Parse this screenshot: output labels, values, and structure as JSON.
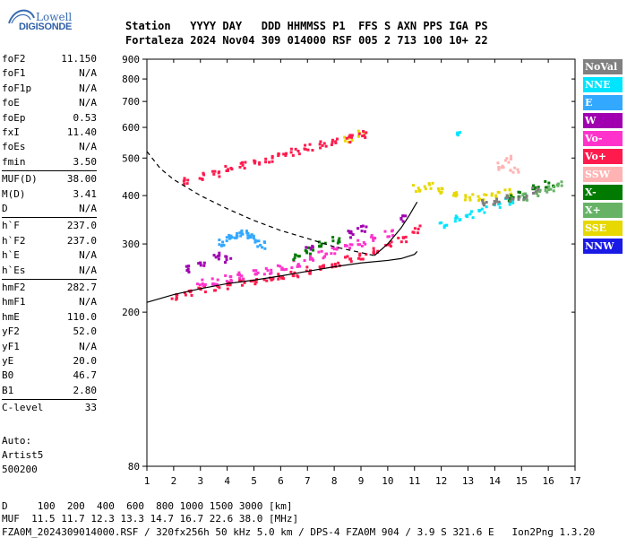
{
  "logo": {
    "line1": "Lowell",
    "line2": "DIGISONDE"
  },
  "header": {
    "labels": "Station   YYYY DAY   DDD HHMMSS P1  FFS S AXN PPS IGA PS",
    "values": "Fortaleza 2024 Nov04 309 014000 RSF 005 2 713 100 10+ 22"
  },
  "params": [
    {
      "name": "foF2",
      "value": "11.150"
    },
    {
      "name": "foF1",
      "value": "N/A"
    },
    {
      "name": "foF1p",
      "value": "N/A"
    },
    {
      "name": "foE",
      "value": "N/A"
    },
    {
      "name": "foEp",
      "value": "0.53"
    },
    {
      "name": "fxI",
      "value": "11.40"
    },
    {
      "name": "foEs",
      "value": "N/A"
    },
    {
      "name": "fmin",
      "value": "3.50"
    },
    {
      "name": "MUF(D)",
      "value": "38.00"
    },
    {
      "name": "M(D)",
      "value": "3.41"
    },
    {
      "name": "D",
      "value": "N/A"
    },
    {
      "name": "h`F",
      "value": "237.0"
    },
    {
      "name": "h`F2",
      "value": "237.0"
    },
    {
      "name": "h`E",
      "value": "N/A"
    },
    {
      "name": "h`Es",
      "value": "N/A"
    },
    {
      "name": "hmF2",
      "value": "282.7"
    },
    {
      "name": "hmF1",
      "value": "N/A"
    },
    {
      "name": "hmE",
      "value": "110.0"
    },
    {
      "name": "yF2",
      "value": "52.0"
    },
    {
      "name": "yF1",
      "value": "N/A"
    },
    {
      "name": "yE",
      "value": "20.0"
    },
    {
      "name": "B0",
      "value": "46.7"
    },
    {
      "name": "B1",
      "value": "2.80"
    },
    {
      "name": "C-level",
      "value": "33"
    }
  ],
  "autoscaling": {
    "line1": "Auto:",
    "line2": "Artist5",
    "line3": "500200"
  },
  "legend": [
    {
      "label": "NoVal",
      "color": "#808080"
    },
    {
      "label": "NNE",
      "color": "#00e5ff"
    },
    {
      "label": "E",
      "color": "#33a8ff"
    },
    {
      "label": "W",
      "color": "#a000b0"
    },
    {
      "label": "Vo-",
      "color": "#ff33cc"
    },
    {
      "label": "Vo+",
      "color": "#ff1a4d"
    },
    {
      "label": "SSW",
      "color": "#ffb3b3"
    },
    {
      "label": "X-",
      "color": "#007a00"
    },
    {
      "label": "X+",
      "color": "#66b366"
    },
    {
      "label": "SSE",
      "color": "#e6d800"
    },
    {
      "label": "NNW",
      "color": "#1a1ae6"
    }
  ],
  "footer": {
    "line1": "D     100  200  400  600  800 1000 1500 3000 [km]",
    "line2": "MUF  11.5 11.7 12.3 13.3 14.7 16.7 22.6 38.0 [MHz]",
    "line3": "FZA0M_2024309014000.RSF / 320fx256h 50 kHz 5.0 km / DPS-4 FZA0M 904 / 3.9 S 321.6 E   Ion2Png 1.3.20"
  },
  "chart_data": {
    "type": "scatter",
    "title": "",
    "xlabel": "",
    "ylabel": "",
    "xlim": [
      1,
      17
    ],
    "ylim": [
      80,
      900
    ],
    "y_scale": "log",
    "xticks": [
      1,
      2,
      3,
      4,
      5,
      6,
      7,
      8,
      9,
      10,
      11,
      12,
      13,
      14,
      15,
      16,
      17
    ],
    "yticks": [
      80,
      200,
      300,
      400,
      500,
      600,
      700,
      800,
      900
    ],
    "grid": false,
    "legend_placement": "right",
    "curves": [
      {
        "name": "",
        "style": "dashed",
        "x": [
          1.0,
          1.5,
          2.0,
          3.0,
          4.0,
          5.0,
          6.0,
          7.0,
          8.0,
          9.0,
          9.5
        ],
        "y": [
          520,
          470,
          440,
          400,
          370,
          345,
          325,
          310,
          295,
          285,
          280
        ]
      },
      {
        "name": "",
        "style": "solid",
        "x": [
          1.0,
          2.0,
          3.0,
          4.0,
          5.0,
          6.0,
          7.0,
          8.0,
          9.0,
          10.0,
          10.5,
          11.0,
          11.1
        ],
        "y": [
          212,
          222,
          230,
          237,
          242,
          248,
          255,
          262,
          268,
          272,
          275,
          282,
          287
        ]
      },
      {
        "name": "",
        "style": "solid",
        "x": [
          9.5,
          10.0,
          10.5,
          10.8,
          11.0,
          11.1
        ],
        "y": [
          280,
          300,
          330,
          355,
          375,
          385
        ]
      }
    ],
    "series": [
      {
        "name": "Vo+",
        "x": [
          2.0,
          2.5,
          3.0,
          3.5,
          4.0,
          4.5,
          5.0,
          5.5,
          6.0,
          6.5,
          7.0,
          7.5,
          8.0,
          8.5,
          9.0,
          9.5,
          10.0,
          10.5,
          11.0
        ],
        "y": [
          222,
          226,
          231,
          233,
          236,
          240,
          243,
          246,
          250,
          254,
          258,
          262,
          268,
          275,
          282,
          290,
          300,
          312,
          330
        ]
      },
      {
        "name": "Vo-",
        "x": [
          3.0,
          3.5,
          4.0,
          4.5,
          5.0,
          5.5,
          6.0,
          6.5,
          7.0,
          7.5,
          8.0,
          8.5,
          9.0,
          9.5,
          10.0
        ],
        "y": [
          240,
          242,
          246,
          250,
          254,
          258,
          262,
          268,
          276,
          284,
          290,
          296,
          304,
          312,
          322
        ]
      },
      {
        "name": "W",
        "x": [
          2.5,
          3.0,
          3.5,
          4.0,
          7.0,
          8.5,
          9.0,
          10.5
        ],
        "y": [
          260,
          270,
          282,
          275,
          295,
          320,
          330,
          350
        ]
      },
      {
        "name": "E",
        "x": [
          3.8,
          4.0,
          4.2,
          4.4,
          4.6,
          4.8,
          5.0,
          5.2
        ],
        "y": [
          305,
          312,
          318,
          322,
          320,
          316,
          312,
          300
        ]
      },
      {
        "name": "NNE",
        "x": [
          12.0,
          12.5,
          13.0,
          13.5,
          14.0,
          14.5,
          12.5
        ],
        "y": [
          340,
          352,
          360,
          370,
          380,
          390,
          580
        ]
      },
      {
        "name": "SSE",
        "x": [
          11.0,
          11.5,
          12.0,
          12.5,
          13.0,
          13.5,
          14.0,
          14.5,
          8.5,
          9.0
        ],
        "y": [
          420,
          425,
          415,
          405,
          400,
          398,
          405,
          410,
          560,
          580
        ]
      },
      {
        "name": "X-",
        "x": [
          6.5,
          7.0,
          7.5,
          8.0,
          14.5,
          15.0,
          15.5,
          16.0
        ],
        "y": [
          280,
          290,
          300,
          310,
          395,
          405,
          420,
          430
        ]
      },
      {
        "name": "X+",
        "x": [
          15.0,
          15.5,
          16.0,
          16.3
        ],
        "y": [
          400,
          410,
          420,
          430
        ]
      },
      {
        "name": "SSW",
        "x": [
          14.2,
          14.5,
          14.7
        ],
        "y": [
          480,
          500,
          470
        ]
      },
      {
        "name": "NoVal",
        "x": [
          13.5,
          14.0,
          14.5,
          15.0,
          15.5
        ],
        "y": [
          385,
          390,
          395,
          400,
          415
        ]
      },
      {
        "name": "Vo+ (2-hop)",
        "x": [
          2.5,
          3.0,
          3.5,
          4.0,
          4.5,
          5.0,
          5.5,
          6.0,
          6.5,
          7.0,
          7.5,
          8.0,
          8.5,
          9.0
        ],
        "y": [
          440,
          452,
          460,
          472,
          482,
          492,
          500,
          512,
          522,
          535,
          545,
          555,
          565,
          580
        ]
      }
    ]
  }
}
